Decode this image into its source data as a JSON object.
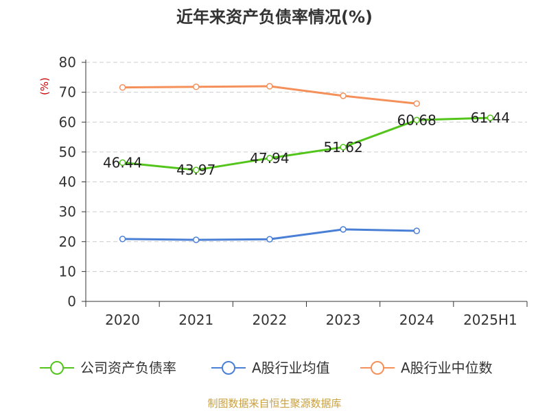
{
  "title": "近年来资产负债率情况(%)",
  "source": "制图数据来自恒生聚源数据库",
  "colors": {
    "company": "#52c41a",
    "avg": "#4a7fd6",
    "median": "#f5905a",
    "axis": "#333333",
    "grid": "#cccccc",
    "unit": "#cc0000"
  },
  "chart_data": {
    "type": "line",
    "title": "近年来资产负债率情况(%)",
    "ylabel": "(%)",
    "xlabel": "",
    "ylim": [
      0,
      80
    ],
    "yticks": [
      0,
      10,
      20,
      30,
      40,
      50,
      60,
      70,
      80
    ],
    "categories": [
      "2020",
      "2021",
      "2022",
      "2023",
      "2024",
      "2025H1"
    ],
    "grid": true,
    "legend_position": "bottom",
    "series": [
      {
        "name": "公司资产负债率",
        "color_key": "company",
        "values": [
          46.44,
          43.97,
          47.94,
          51.62,
          60.68,
          61.44
        ],
        "labels": [
          "46.44",
          "43.97",
          "47.94",
          "51.62",
          "60.68",
          "61.44"
        ],
        "show_labels": true
      },
      {
        "name": "A股行业均值",
        "color_key": "avg",
        "values": [
          20.9,
          20.6,
          20.8,
          24.1,
          23.6,
          null
        ],
        "show_labels": false
      },
      {
        "name": "A股行业中位数",
        "color_key": "median",
        "values": [
          71.6,
          71.8,
          72.0,
          68.8,
          66.2,
          null
        ],
        "show_labels": false
      }
    ]
  }
}
